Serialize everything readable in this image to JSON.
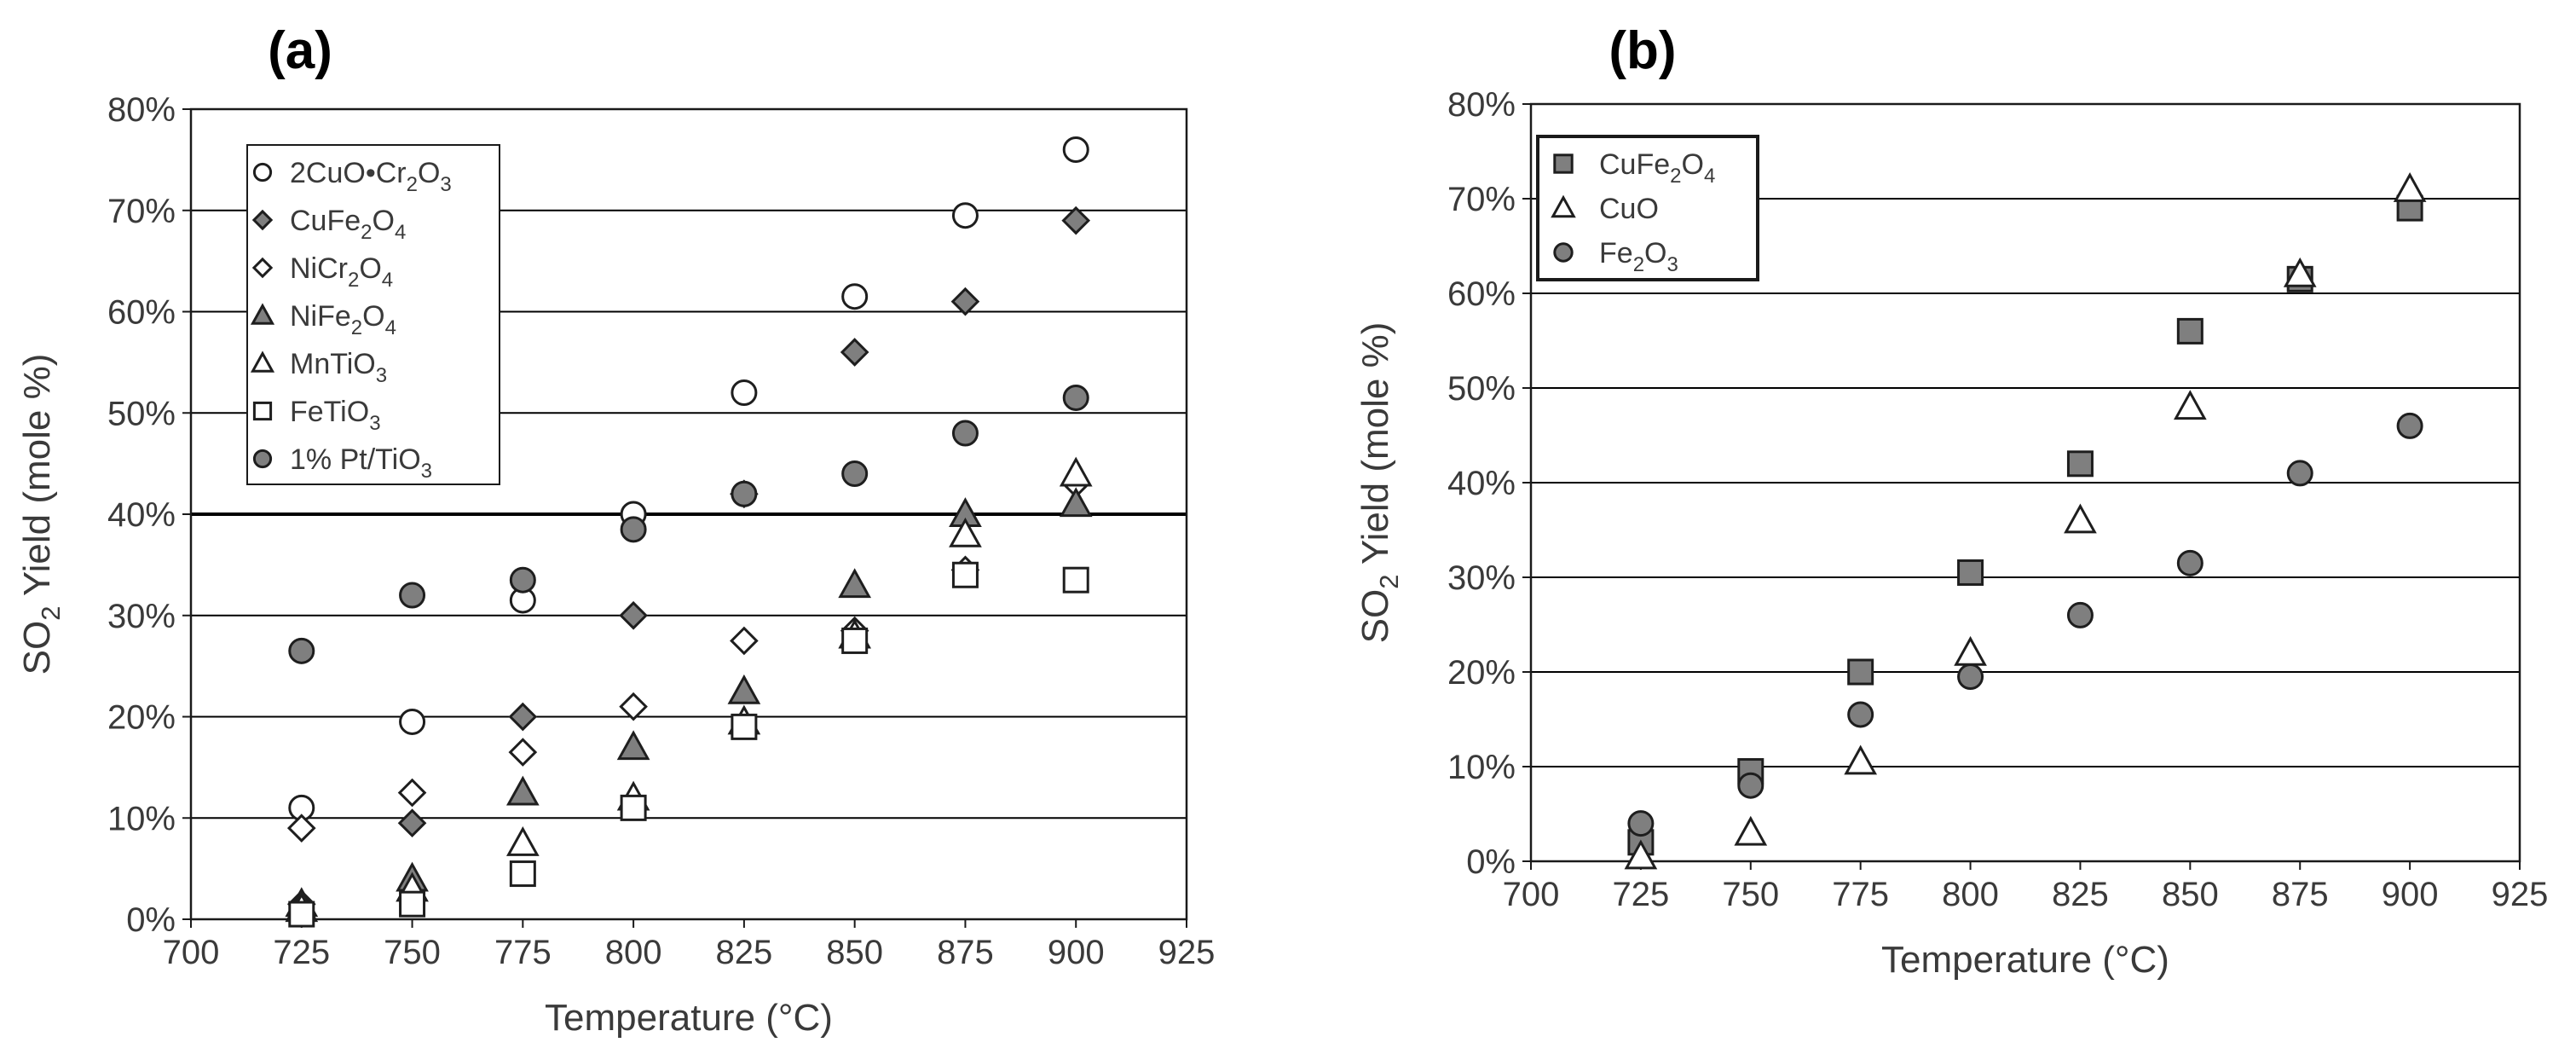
{
  "chart_data": [
    {
      "panel": "(a)",
      "type": "scatter",
      "xlabel": "Temperature (°C)",
      "ylabel": [
        "SO",
        "2",
        " Yield (mole %)"
      ],
      "xlim": [
        700,
        925
      ],
      "xticks": [
        "700",
        "725",
        "750",
        "775",
        "800",
        "825",
        "850",
        "875",
        "900",
        "925"
      ],
      "ylim": [
        0,
        80
      ],
      "yticks": [
        "0%",
        "10%",
        "20%",
        "30%",
        "40%",
        "50%",
        "60%",
        "70%",
        "80%"
      ],
      "grid": "horizontal",
      "legend_position": "top-left",
      "series": [
        {
          "name": [
            [
              "2CuO•Cr",
              false
            ],
            [
              "2",
              true
            ],
            [
              "O",
              false
            ],
            [
              "3",
              true
            ]
          ],
          "marker": "circle",
          "fill": "#ffffff",
          "x": [
            725,
            750,
            775,
            800,
            825,
            850,
            875,
            900
          ],
          "y": [
            11,
            19.5,
            31.5,
            40,
            52,
            61.5,
            69.5,
            76
          ]
        },
        {
          "name": [
            [
              "CuFe",
              false
            ],
            [
              "2",
              true
            ],
            [
              "O",
              false
            ],
            [
              "4",
              true
            ]
          ],
          "marker": "diamond",
          "fill": "#7f7f7f",
          "x": [
            725,
            750,
            775,
            800,
            825,
            850,
            875,
            900
          ],
          "y": [
            1.5,
            9.5,
            20,
            30,
            42,
            56,
            61,
            69
          ]
        },
        {
          "name": [
            [
              "NiCr",
              false
            ],
            [
              "2",
              true
            ],
            [
              "O",
              false
            ],
            [
              "4",
              true
            ]
          ],
          "marker": "diamond",
          "fill": "#ffffff",
          "x": [
            725,
            750,
            775,
            800,
            825,
            850,
            875,
            900
          ],
          "y": [
            9,
            12.5,
            16.5,
            21,
            27.5,
            28.5,
            34.5,
            43
          ]
        },
        {
          "name": [
            [
              "NiFe",
              false
            ],
            [
              "2",
              true
            ],
            [
              "O",
              false
            ],
            [
              "4",
              true
            ]
          ],
          "marker": "triangle",
          "fill": "#7f7f7f",
          "x": [
            725,
            750,
            775,
            800,
            825,
            850,
            875,
            900
          ],
          "y": [
            1.5,
            4,
            12.5,
            17,
            22.5,
            33,
            40,
            41
          ]
        },
        {
          "name": [
            [
              "MnTiO",
              false
            ],
            [
              "3",
              true
            ]
          ],
          "marker": "triangle",
          "fill": "#ffffff",
          "x": [
            725,
            750,
            775,
            800,
            825,
            850,
            875,
            900
          ],
          "y": [
            1,
            3,
            7.5,
            12,
            19.5,
            28,
            38,
            44
          ]
        },
        {
          "name": [
            [
              "FeTiO",
              false
            ],
            [
              "3",
              true
            ]
          ],
          "marker": "square",
          "fill": "#ffffff",
          "x": [
            725,
            750,
            775,
            800,
            825,
            850,
            875,
            900
          ],
          "y": [
            0.5,
            1.5,
            4.5,
            11,
            19,
            27.5,
            34,
            33.5
          ]
        },
        {
          "name": [
            [
              "1% Pt/TiO",
              false
            ],
            [
              "3",
              true
            ]
          ],
          "marker": "circle",
          "fill": "#7f7f7f",
          "x": [
            725,
            750,
            775,
            800,
            825,
            850,
            875,
            900
          ],
          "y": [
            26.5,
            32,
            33.5,
            38.5,
            42,
            44,
            48,
            51.5
          ]
        }
      ]
    },
    {
      "panel": "(b)",
      "type": "scatter",
      "xlabel": "Temperature (°C)",
      "ylabel": [
        "SO",
        "2",
        " Yield (mole %)"
      ],
      "xlim": [
        700,
        925
      ],
      "xticks": [
        "700",
        "725",
        "750",
        "775",
        "800",
        "825",
        "850",
        "875",
        "900",
        "925"
      ],
      "ylim": [
        0,
        80
      ],
      "yticks": [
        "0%",
        "10%",
        "20%",
        "30%",
        "40%",
        "50%",
        "60%",
        "70%",
        "80%"
      ],
      "grid": "horizontal",
      "legend_position": "top-left",
      "series": [
        {
          "name": [
            [
              "CuFe",
              false
            ],
            [
              "2",
              true
            ],
            [
              "O",
              false
            ],
            [
              "4",
              true
            ]
          ],
          "marker": "square",
          "fill": "#7f7f7f",
          "x": [
            725,
            750,
            775,
            800,
            825,
            850,
            875,
            900
          ],
          "y": [
            2,
            9.5,
            20,
            30.5,
            42,
            56,
            61.5,
            69
          ]
        },
        {
          "name": [
            [
              "CuO",
              false
            ]
          ],
          "marker": "triangle",
          "fill": "#ffffff",
          "x": [
            725,
            750,
            775,
            800,
            825,
            850,
            875,
            900
          ],
          "y": [
            0.5,
            3,
            10.5,
            22,
            36,
            48,
            62,
            71
          ]
        },
        {
          "name": [
            [
              "Fe",
              false
            ],
            [
              "2",
              true
            ],
            [
              "O",
              false
            ],
            [
              "3",
              true
            ]
          ],
          "marker": "circle",
          "fill": "#7f7f7f",
          "x": [
            725,
            750,
            775,
            800,
            825,
            850,
            875,
            900
          ],
          "y": [
            4,
            8,
            15.5,
            19.5,
            26,
            31.5,
            41,
            46
          ]
        }
      ]
    }
  ]
}
